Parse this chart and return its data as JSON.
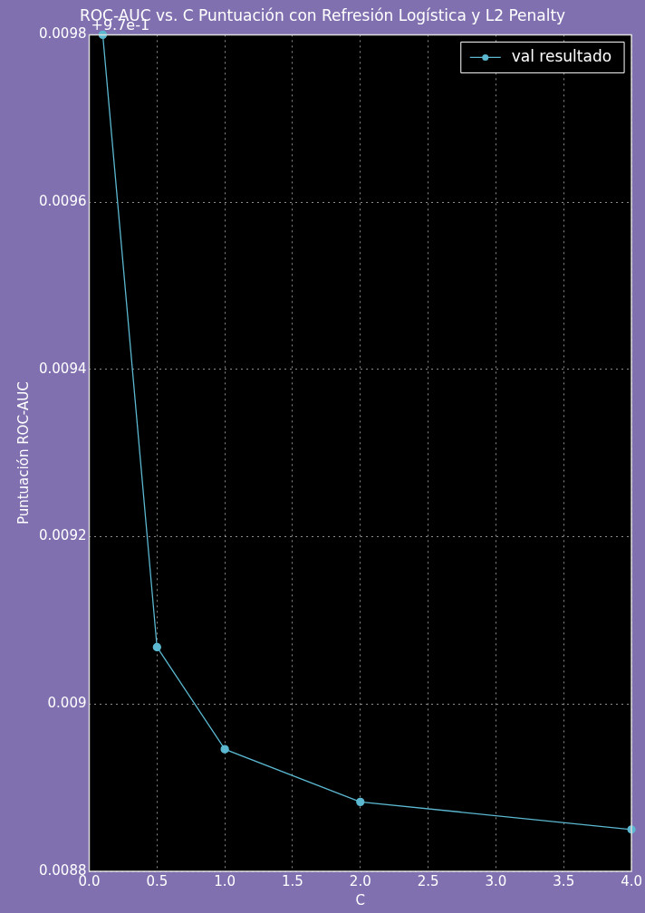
{
  "chart_data": {
    "type": "line",
    "title": "ROC-AUC vs. C Puntuación con Refresión Logística y L2 Penalty",
    "xlabel": "C",
    "ylabel": "Puntuación ROC-AUC",
    "annotations": [
      "+9.7e-1"
    ],
    "x": [
      0.1,
      0.5,
      1.0,
      2.0,
      4.0
    ],
    "series": [
      {
        "name": "val resultado",
        "color": "#5bb8d0",
        "values": [
          0.0098,
          0.009068,
          0.008946,
          0.008883,
          0.00885
        ]
      }
    ],
    "xlim": [
      0,
      4
    ],
    "xticks": [
      {
        "value": 0,
        "label": "0.0"
      },
      {
        "value": 0.5,
        "label": "0.5"
      },
      {
        "value": 1,
        "label": "1.0"
      },
      {
        "value": 1.5,
        "label": "1.5"
      },
      {
        "value": 2,
        "label": "2.0"
      },
      {
        "value": 2.5,
        "label": "2.5"
      },
      {
        "value": 3,
        "label": "3.0"
      },
      {
        "value": 3.5,
        "label": "3.5"
      },
      {
        "value": 4,
        "label": "4.0"
      }
    ],
    "ylim": [
      0.0088,
      0.0098
    ],
    "yticks": [
      0.0088,
      0.009,
      0.0092,
      0.0094,
      0.0096,
      0.0098
    ],
    "grid": true,
    "legend": "top right",
    "marker": "circle",
    "line_style": "solid"
  }
}
